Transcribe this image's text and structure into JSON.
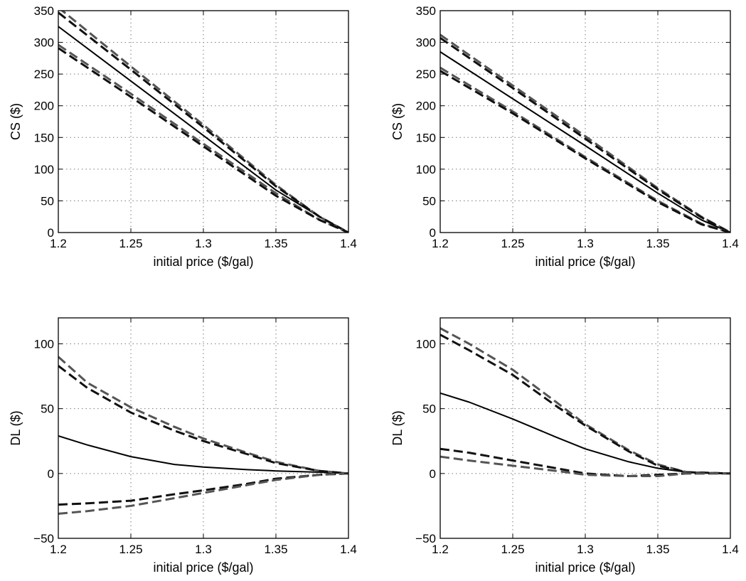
{
  "chart_data": [
    {
      "type": "line",
      "xlabel": "initial price ($/gal)",
      "ylabel": "CS ($)",
      "xlim": [
        1.2,
        1.4
      ],
      "ylim": [
        0,
        350
      ],
      "xticks": [
        "1.2",
        "1.25",
        "1.3",
        "1.35",
        "1.4"
      ],
      "yticks": [
        "0",
        "50",
        "100",
        "150",
        "200",
        "250",
        "300",
        "350"
      ],
      "grid": true,
      "series": [
        {
          "style": "solid",
          "color": "#000000",
          "x": [
            1.2,
            1.25,
            1.3,
            1.35,
            1.38,
            1.4
          ],
          "y": [
            325,
            239,
            153,
            67,
            25,
            0
          ]
        },
        {
          "style": "dashed",
          "color": "#555555",
          "x": [
            1.2,
            1.25,
            1.3,
            1.35,
            1.38,
            1.4
          ],
          "y": [
            355,
            262,
            170,
            75,
            25,
            0
          ]
        },
        {
          "style": "dashed",
          "color": "#111111",
          "x": [
            1.2,
            1.25,
            1.3,
            1.35,
            1.38,
            1.4
          ],
          "y": [
            347,
            257,
            166,
            73,
            25,
            0
          ]
        },
        {
          "style": "dashed",
          "color": "#555555",
          "x": [
            1.2,
            1.25,
            1.3,
            1.35,
            1.38,
            1.4
          ],
          "y": [
            296,
            219,
            140,
            62,
            20,
            0
          ]
        },
        {
          "style": "dashed",
          "color": "#111111",
          "x": [
            1.2,
            1.25,
            1.3,
            1.35,
            1.38,
            1.4
          ],
          "y": [
            291,
            214,
            136,
            58,
            20,
            0
          ]
        }
      ]
    },
    {
      "type": "line",
      "xlabel": "initial price ($/gal)",
      "ylabel": "CS ($)",
      "xlim": [
        1.2,
        1.4
      ],
      "ylim": [
        0,
        350
      ],
      "xticks": [
        "1.2",
        "1.25",
        "1.3",
        "1.35",
        "1.4"
      ],
      "yticks": [
        "0",
        "50",
        "100",
        "150",
        "200",
        "250",
        "300",
        "350"
      ],
      "grid": true,
      "series": [
        {
          "style": "solid",
          "color": "#000000",
          "x": [
            1.2,
            1.25,
            1.3,
            1.35,
            1.38,
            1.4
          ],
          "y": [
            285,
            211,
            137,
            62,
            20,
            0
          ]
        },
        {
          "style": "dashed",
          "color": "#555555",
          "x": [
            1.2,
            1.25,
            1.3,
            1.35,
            1.38,
            1.4
          ],
          "y": [
            312,
            232,
            152,
            70,
            25,
            0
          ]
        },
        {
          "style": "dashed",
          "color": "#111111",
          "x": [
            1.2,
            1.25,
            1.3,
            1.35,
            1.38,
            1.4
          ],
          "y": [
            307,
            228,
            148,
            68,
            24,
            0
          ]
        },
        {
          "style": "dashed",
          "color": "#555555",
          "x": [
            1.2,
            1.25,
            1.3,
            1.35,
            1.38,
            1.4
          ],
          "y": [
            260,
            191,
            119,
            50,
            14,
            0
          ]
        },
        {
          "style": "dashed",
          "color": "#111111",
          "x": [
            1.2,
            1.25,
            1.3,
            1.35,
            1.38,
            1.4
          ],
          "y": [
            255,
            188,
            117,
            48,
            13,
            0
          ]
        }
      ]
    },
    {
      "type": "line",
      "xlabel": "initial price ($/gal)",
      "ylabel": "DL ($)",
      "xlim": [
        1.2,
        1.4
      ],
      "ylim": [
        -50,
        120
      ],
      "xticks": [
        "1.2",
        "1.25",
        "1.3",
        "1.35",
        "1.4"
      ],
      "yticks": [
        "−50",
        "0",
        "50",
        "100"
      ],
      "ytick_values": [
        -50,
        0,
        50,
        100
      ],
      "grid": true,
      "series": [
        {
          "style": "solid",
          "color": "#000000",
          "x": [
            1.2,
            1.22,
            1.25,
            1.28,
            1.3,
            1.33,
            1.35,
            1.38,
            1.4
          ],
          "y": [
            29,
            22,
            13,
            7,
            5,
            3,
            2,
            1,
            0
          ]
        },
        {
          "style": "dashed",
          "color": "#555555",
          "x": [
            1.2,
            1.22,
            1.25,
            1.28,
            1.3,
            1.33,
            1.35,
            1.38,
            1.4
          ],
          "y": [
            90,
            70,
            51,
            36,
            27,
            16,
            9,
            2,
            0
          ]
        },
        {
          "style": "dashed",
          "color": "#111111",
          "x": [
            1.2,
            1.22,
            1.25,
            1.28,
            1.3,
            1.33,
            1.35,
            1.38,
            1.4
          ],
          "y": [
            83,
            66,
            47,
            33,
            25,
            15,
            8,
            2,
            0
          ]
        },
        {
          "style": "dashed",
          "color": "#111111",
          "x": [
            1.2,
            1.22,
            1.25,
            1.28,
            1.3,
            1.33,
            1.35,
            1.38,
            1.4
          ],
          "y": [
            -24,
            -23,
            -21,
            -16,
            -13,
            -8,
            -4,
            -1,
            0
          ]
        },
        {
          "style": "dashed",
          "color": "#555555",
          "x": [
            1.2,
            1.22,
            1.25,
            1.28,
            1.3,
            1.33,
            1.35,
            1.38,
            1.4
          ],
          "y": [
            -31,
            -29,
            -25,
            -19,
            -15,
            -9,
            -5,
            -1,
            0
          ]
        }
      ]
    },
    {
      "type": "line",
      "xlabel": "initial price ($/gal)",
      "ylabel": "DL ($)",
      "xlim": [
        1.2,
        1.4
      ],
      "ylim": [
        -50,
        120
      ],
      "xticks": [
        "1.2",
        "1.25",
        "1.3",
        "1.35",
        "1.4"
      ],
      "yticks": [
        "−50",
        "0",
        "50",
        "100"
      ],
      "ytick_values": [
        -50,
        0,
        50,
        100
      ],
      "grid": true,
      "series": [
        {
          "style": "solid",
          "color": "#000000",
          "x": [
            1.2,
            1.22,
            1.25,
            1.28,
            1.3,
            1.33,
            1.35,
            1.37,
            1.4
          ],
          "y": [
            62,
            55,
            42,
            28,
            19,
            9,
            4,
            1,
            0
          ]
        },
        {
          "style": "dashed",
          "color": "#555555",
          "x": [
            1.2,
            1.22,
            1.25,
            1.28,
            1.3,
            1.33,
            1.35,
            1.37,
            1.4
          ],
          "y": [
            112,
            100,
            80,
            55,
            38,
            18,
            7,
            1,
            0
          ]
        },
        {
          "style": "dashed",
          "color": "#111111",
          "x": [
            1.2,
            1.22,
            1.25,
            1.28,
            1.3,
            1.33,
            1.35,
            1.37,
            1.4
          ],
          "y": [
            107,
            95,
            76,
            52,
            37,
            17,
            6,
            1,
            0
          ]
        },
        {
          "style": "dashed",
          "color": "#111111",
          "x": [
            1.2,
            1.22,
            1.25,
            1.28,
            1.3,
            1.33,
            1.35,
            1.37,
            1.4
          ],
          "y": [
            19,
            16,
            10,
            4,
            0,
            -2,
            -1,
            0,
            0
          ]
        },
        {
          "style": "dashed",
          "color": "#555555",
          "x": [
            1.2,
            1.22,
            1.25,
            1.28,
            1.3,
            1.33,
            1.35,
            1.37,
            1.4
          ],
          "y": [
            13,
            10,
            6,
            2,
            -1,
            -2,
            -2,
            0,
            0
          ]
        }
      ]
    }
  ]
}
